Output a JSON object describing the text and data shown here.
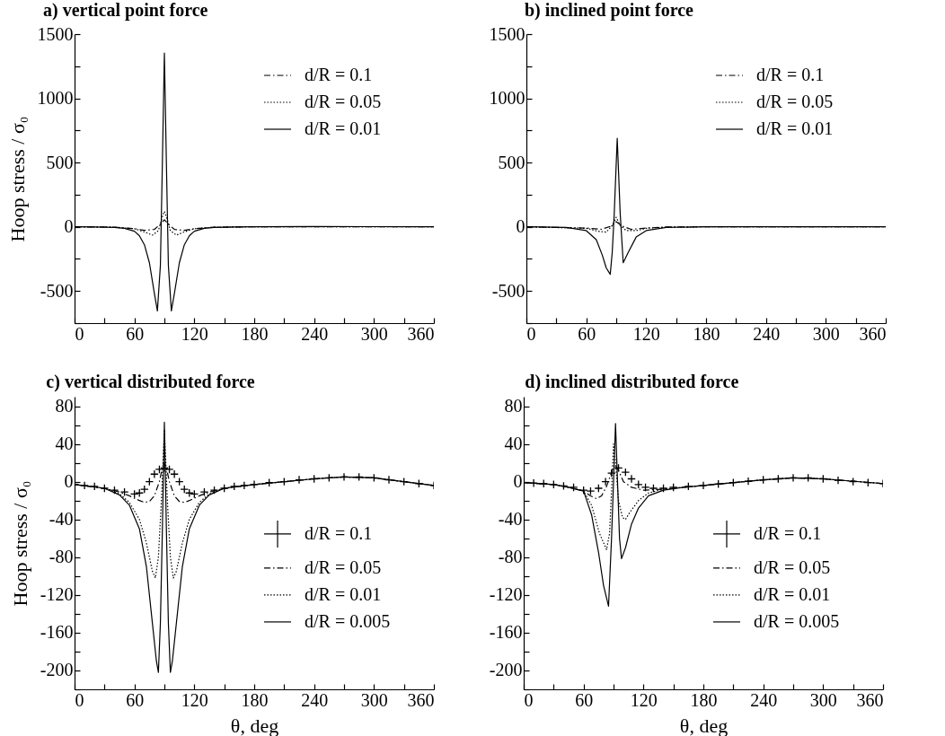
{
  "chart_data": [
    {
      "type": "line",
      "title": "a) vertical point force",
      "ylabel": "Hoop stress / σ₀",
      "xlim": [
        0,
        360
      ],
      "xticks": [
        0,
        {
          "value": 30,
          "label": null
        },
        60,
        {
          "value": 90,
          "label": null
        },
        120,
        {
          "value": 150,
          "label": null
        },
        180,
        {
          "value": 210,
          "label": null
        },
        240,
        {
          "value": 270,
          "label": null
        },
        300,
        {
          "value": 330,
          "label": null
        },
        360
      ],
      "ylim": [
        -750,
        1500
      ],
      "yticks": [
        {
          "value": -750,
          "label": null
        },
        -500,
        {
          "value": -250,
          "label": null
        },
        0,
        {
          "value": 250,
          "label": null
        },
        500,
        {
          "value": 750,
          "label": null
        },
        1000,
        {
          "value": 1250,
          "label": null
        },
        1500
      ],
      "legend": "top right",
      "series": [
        {
          "name": "d/R = 0.1",
          "color": "#000000",
          "line_style": "dashed",
          "x": [
            0,
            40,
            60,
            70,
            80,
            86,
            90,
            94,
            100,
            110,
            120,
            140,
            180,
            360
          ],
          "values": [
            0,
            -3,
            -15,
            -28,
            -20,
            20,
            55,
            20,
            -20,
            -28,
            -15,
            -3,
            0,
            0
          ]
        },
        {
          "name": "d/R = 0.05",
          "color": "#000000",
          "line_style": "dotted",
          "x": [
            0,
            40,
            60,
            70,
            78,
            84,
            88,
            90,
            92,
            96,
            102,
            110,
            120,
            140,
            180,
            360
          ],
          "values": [
            0,
            -3,
            -15,
            -40,
            -65,
            -30,
            80,
            120,
            80,
            -30,
            -65,
            -40,
            -15,
            -3,
            0,
            0
          ]
        },
        {
          "name": "d/R = 0.01",
          "color": "#000000",
          "line_style": "solid",
          "x": [
            0,
            20,
            40,
            50,
            60,
            65,
            70,
            75,
            80,
            83,
            86,
            88,
            90,
            92,
            94,
            97,
            100,
            105,
            110,
            115,
            120,
            130,
            140,
            160,
            180,
            240,
            300,
            360
          ],
          "values": [
            0,
            -1,
            -5,
            -12,
            -35,
            -70,
            -140,
            -280,
            -520,
            -655,
            -300,
            500,
            1352,
            500,
            -300,
            -655,
            -520,
            -280,
            -140,
            -70,
            -35,
            -12,
            -5,
            -2,
            0,
            2,
            1,
            0
          ]
        }
      ]
    },
    {
      "type": "line",
      "title": "b) inclined point force",
      "xlim": [
        0,
        360
      ],
      "xticks": [
        0,
        {
          "value": 30,
          "label": null
        },
        60,
        {
          "value": 90,
          "label": null
        },
        120,
        {
          "value": 150,
          "label": null
        },
        180,
        {
          "value": 210,
          "label": null
        },
        240,
        {
          "value": 270,
          "label": null
        },
        300,
        {
          "value": 330,
          "label": null
        },
        360
      ],
      "ylim": [
        -750,
        1500
      ],
      "yticks": [
        {
          "value": -750,
          "label": null
        },
        -500,
        {
          "value": -250,
          "label": null
        },
        0,
        {
          "value": 250,
          "label": null
        },
        500,
        {
          "value": 750,
          "label": null
        },
        1000,
        {
          "value": 1250,
          "label": null
        },
        1500
      ],
      "legend": "top right",
      "series": [
        {
          "name": "d/R = 0.1",
          "color": "#000000",
          "line_style": "dashed",
          "x": [
            0,
            60,
            75,
            85,
            90,
            96,
            105,
            120,
            140,
            180,
            360
          ],
          "values": [
            0,
            -10,
            -20,
            5,
            40,
            5,
            -20,
            -10,
            -2,
            0,
            0
          ]
        },
        {
          "name": "d/R = 0.05",
          "color": "#000000",
          "line_style": "dotted",
          "x": [
            0,
            60,
            72,
            80,
            86,
            90,
            94,
            100,
            110,
            120,
            140,
            180,
            360
          ],
          "values": [
            0,
            -12,
            -35,
            -42,
            10,
            74,
            10,
            -30,
            -30,
            -12,
            -3,
            0,
            0
          ]
        },
        {
          "name": "d/R = 0.01",
          "color": "#000000",
          "line_style": "solid",
          "x": [
            0,
            40,
            60,
            70,
            76,
            80,
            84,
            86,
            88,
            91,
            94,
            97,
            102,
            110,
            120,
            140,
            180,
            360
          ],
          "values": [
            0,
            -5,
            -30,
            -100,
            -220,
            -320,
            -370,
            -200,
            100,
            688,
            100,
            -280,
            -200,
            -80,
            -30,
            -5,
            0,
            0
          ]
        }
      ]
    },
    {
      "type": "line",
      "title": "c) vertical distributed force",
      "xlabel": "θ, deg",
      "ylabel": "Hoop stress / σ₀",
      "xlim": [
        0,
        360
      ],
      "xticks": [
        0,
        {
          "value": 30,
          "label": null
        },
        60,
        {
          "value": 90,
          "label": null
        },
        120,
        {
          "value": 150,
          "label": null
        },
        180,
        {
          "value": 210,
          "label": null
        },
        240,
        {
          "value": 270,
          "label": null
        },
        300,
        {
          "value": 330,
          "label": null
        },
        360
      ],
      "ylim": [
        -220,
        90
      ],
      "yticks": [
        {
          "value": -220,
          "label": null
        },
        -200,
        {
          "value": -180,
          "label": null
        },
        -160,
        {
          "value": -140,
          "label": null
        },
        -120,
        {
          "value": -100,
          "label": null
        },
        -80,
        {
          "value": -60,
          "label": null
        },
        -40,
        {
          "value": -20,
          "label": null
        },
        0,
        {
          "value": 20,
          "label": null
        },
        40,
        {
          "value": 60,
          "label": null
        },
        80
      ],
      "legend": "right",
      "series": [
        {
          "name": "d/R = 0.1",
          "color": "#000000",
          "type": "scatter",
          "marker": "cross",
          "x": [
            0,
            10,
            20,
            30,
            40,
            50,
            60,
            65,
            70,
            75,
            80,
            85,
            90,
            95,
            100,
            105,
            110,
            115,
            120,
            130,
            140,
            150,
            160,
            170,
            180,
            195,
            210,
            225,
            240,
            255,
            270,
            285,
            300,
            315,
            330,
            345,
            360
          ],
          "values": [
            -3,
            -4,
            -5,
            -7,
            -9,
            -11,
            -13,
            -12,
            -8,
            0,
            8,
            13,
            14.5,
            13,
            8,
            0,
            -8,
            -12,
            -13,
            -11,
            -9,
            -7,
            -5,
            -4,
            -3,
            -1,
            0,
            2,
            3,
            4,
            5,
            5,
            4,
            2,
            0,
            -2,
            -4
          ]
        },
        {
          "name": "d/R = 0.05",
          "color": "#000000",
          "line_style": "dashed",
          "x": [
            0,
            30,
            45,
            55,
            65,
            70,
            75,
            80,
            85,
            88,
            90,
            92,
            95,
            100,
            105,
            110,
            115,
            125,
            135,
            150,
            180,
            240,
            270,
            300,
            360
          ],
          "values": [
            -3,
            -7,
            -11,
            -15,
            -20,
            -22,
            -21,
            -15,
            0,
            15,
            20,
            15,
            0,
            -15,
            -21,
            -22,
            -20,
            -15,
            -11,
            -7,
            -3,
            3,
            5,
            4,
            -4
          ]
        },
        {
          "name": "d/R = 0.01",
          "color": "#000000",
          "line_style": "dotted",
          "x": [
            0,
            30,
            45,
            55,
            65,
            72,
            78,
            81,
            84,
            87,
            89,
            90,
            91,
            93,
            96,
            99,
            102,
            108,
            115,
            125,
            135,
            150,
            180,
            240,
            270,
            300,
            360
          ],
          "values": [
            -3,
            -7,
            -13,
            -22,
            -40,
            -65,
            -95,
            -102,
            -80,
            -20,
            30,
            55,
            30,
            -20,
            -80,
            -102,
            -95,
            -65,
            -40,
            -22,
            -13,
            -7,
            -3,
            3,
            5,
            4,
            -4
          ]
        },
        {
          "name": "d/R = 0.005",
          "color": "#000000",
          "line_style": "solid",
          "x": [
            0,
            30,
            45,
            55,
            65,
            72,
            78,
            82,
            84,
            86,
            88,
            90,
            92,
            94,
            96,
            98,
            102,
            108,
            115,
            125,
            135,
            150,
            180,
            240,
            270,
            300,
            360
          ],
          "values": [
            -3,
            -7,
            -14,
            -25,
            -50,
            -90,
            -150,
            -190,
            -202,
            -150,
            -50,
            63,
            -50,
            -150,
            -202,
            -190,
            -150,
            -90,
            -50,
            -25,
            -14,
            -7,
            -3,
            3,
            5,
            4,
            -4
          ]
        }
      ]
    },
    {
      "type": "line",
      "title": "d) inclined distributed force",
      "xlabel": "θ, deg",
      "xlim": [
        0,
        360
      ],
      "xticks": [
        0,
        {
          "value": 30,
          "label": null
        },
        60,
        {
          "value": 90,
          "label": null
        },
        120,
        {
          "value": 150,
          "label": null
        },
        180,
        {
          "value": 210,
          "label": null
        },
        240,
        {
          "value": 270,
          "label": null
        },
        300,
        {
          "value": 330,
          "label": null
        },
        360
      ],
      "ylim": [
        -220,
        90
      ],
      "yticks": [
        {
          "value": -220,
          "label": null
        },
        -200,
        {
          "value": -180,
          "label": null
        },
        -160,
        {
          "value": -140,
          "label": null
        },
        -120,
        {
          "value": -100,
          "label": null
        },
        -80,
        {
          "value": -60,
          "label": null
        },
        -40,
        {
          "value": -20,
          "label": null
        },
        0,
        {
          "value": 20,
          "label": null
        },
        40,
        {
          "value": 60,
          "label": null
        },
        80
      ],
      "legend": "right",
      "series": [
        {
          "name": "d/R = 0.1",
          "color": "#000000",
          "type": "scatter",
          "marker": "cross",
          "x": [
            0,
            10,
            20,
            30,
            40,
            50,
            60,
            67,
            75,
            82,
            88,
            95,
            102,
            108,
            115,
            122,
            130,
            140,
            150,
            165,
            180,
            195,
            210,
            225,
            240,
            255,
            270,
            285,
            300,
            315,
            330,
            345,
            360
          ],
          "values": [
            -1,
            -1.5,
            -2,
            -3,
            -4.5,
            -6,
            -9,
            -10,
            -7,
            0,
            9,
            14.5,
            10,
            3,
            -3,
            -6,
            -7,
            -7,
            -6,
            -5,
            -4,
            -2.5,
            -1,
            0.5,
            2,
            3,
            4,
            4,
            3,
            1.5,
            0,
            -1,
            -2
          ]
        },
        {
          "name": "d/R = 0.05",
          "color": "#000000",
          "line_style": "dashed",
          "x": [
            0,
            30,
            45,
            60,
            67,
            73,
            78,
            83,
            88,
            91,
            95,
            100,
            108,
            120,
            140,
            160,
            180,
            240,
            270,
            300,
            360
          ],
          "values": [
            -1,
            -3,
            -6,
            -10,
            -15,
            -18,
            -15,
            -5,
            10,
            18,
            12,
            0,
            -6,
            -9,
            -8,
            -6,
            -4,
            2,
            4,
            3,
            -2
          ]
        },
        {
          "name": "d/R = 0.01",
          "color": "#000000",
          "line_style": "dotted",
          "x": [
            0,
            30,
            45,
            60,
            68,
            76,
            83,
            86,
            88,
            90,
            92,
            95,
            99,
            102,
            106,
            115,
            125,
            140,
            160,
            180,
            240,
            270,
            300,
            360
          ],
          "values": [
            -1,
            -3,
            -6,
            -10,
            -25,
            -55,
            -72,
            -55,
            -10,
            40,
            20,
            -20,
            -38,
            -40,
            -33,
            -20,
            -12,
            -8,
            -6,
            -4,
            2,
            4,
            3,
            -2
          ]
        },
        {
          "name": "d/R = 0.005",
          "color": "#000000",
          "line_style": "solid",
          "x": [
            0,
            30,
            45,
            60,
            68,
            75,
            80,
            85,
            88,
            90,
            92,
            94,
            96,
            98,
            102,
            108,
            115,
            125,
            140,
            160,
            180,
            240,
            270,
            300,
            360
          ],
          "values": [
            -1,
            -3,
            -6,
            -10,
            -35,
            -75,
            -110,
            -132,
            -60,
            0,
            61.5,
            0,
            -60,
            -81.5,
            -70,
            -45,
            -28,
            -15,
            -9,
            -6,
            -4,
            2,
            4,
            3,
            -2
          ]
        }
      ]
    }
  ]
}
